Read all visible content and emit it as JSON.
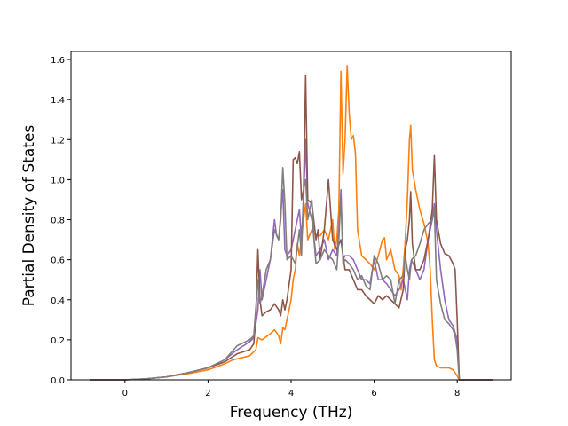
{
  "chart_data": {
    "type": "line",
    "title": "",
    "xlabel": "Frequency (THz)",
    "ylabel": "Partial Density of States",
    "xlim": [
      -1.3,
      9.3
    ],
    "ylim": [
      0.0,
      1.64
    ],
    "xticks": [
      0,
      2,
      4,
      6,
      8
    ],
    "xtick_labels": [
      "0",
      "2",
      "4",
      "6",
      "8"
    ],
    "yticks": [
      0.0,
      0.2,
      0.4,
      0.6,
      0.8,
      1.0,
      1.2,
      1.4,
      1.6
    ],
    "ytick_labels": [
      "0.0",
      "0.2",
      "0.4",
      "0.6",
      "0.8",
      "1.0",
      "1.2",
      "1.4",
      "1.6"
    ],
    "grid": false,
    "legend": "none",
    "series": [
      {
        "color": "#ff7f0e",
        "points": [
          [
            -0.85,
            0
          ],
          [
            0,
            0
          ],
          [
            0.5,
            0.005
          ],
          [
            1.0,
            0.015
          ],
          [
            1.5,
            0.03
          ],
          [
            2.0,
            0.05
          ],
          [
            2.4,
            0.08
          ],
          [
            2.6,
            0.1
          ],
          [
            2.8,
            0.11
          ],
          [
            3.0,
            0.12
          ],
          [
            3.15,
            0.15
          ],
          [
            3.2,
            0.21
          ],
          [
            3.3,
            0.2
          ],
          [
            3.5,
            0.23
          ],
          [
            3.6,
            0.25
          ],
          [
            3.7,
            0.22
          ],
          [
            3.75,
            0.18
          ],
          [
            3.8,
            0.26
          ],
          [
            3.85,
            0.25
          ],
          [
            3.9,
            0.3
          ],
          [
            4.0,
            0.4
          ],
          [
            4.05,
            0.5
          ],
          [
            4.1,
            0.55
          ],
          [
            4.15,
            0.68
          ],
          [
            4.2,
            0.62
          ],
          [
            4.3,
            0.8
          ],
          [
            4.35,
            0.88
          ],
          [
            4.4,
            0.7
          ],
          [
            4.5,
            0.75
          ],
          [
            4.6,
            0.72
          ],
          [
            4.7,
            0.72
          ],
          [
            4.8,
            0.75
          ],
          [
            4.9,
            0.7
          ],
          [
            5.0,
            0.8
          ],
          [
            5.05,
            0.65
          ],
          [
            5.1,
            0.7
          ],
          [
            5.15,
            0.85
          ],
          [
            5.2,
            1.54
          ],
          [
            5.25,
            1.03
          ],
          [
            5.3,
            1.2
          ],
          [
            5.35,
            1.57
          ],
          [
            5.4,
            1.33
          ],
          [
            5.45,
            1.2
          ],
          [
            5.5,
            1.22
          ],
          [
            5.55,
            1.13
          ],
          [
            5.6,
            0.75
          ],
          [
            5.7,
            0.62
          ],
          [
            5.8,
            0.6
          ],
          [
            5.9,
            0.58
          ],
          [
            6.0,
            0.55
          ],
          [
            6.1,
            0.62
          ],
          [
            6.2,
            0.7
          ],
          [
            6.25,
            0.71
          ],
          [
            6.3,
            0.6
          ],
          [
            6.4,
            0.65
          ],
          [
            6.5,
            0.55
          ],
          [
            6.6,
            0.52
          ],
          [
            6.65,
            0.45
          ],
          [
            6.7,
            0.55
          ],
          [
            6.75,
            0.7
          ],
          [
            6.8,
            0.9
          ],
          [
            6.85,
            1.2
          ],
          [
            6.88,
            1.27
          ],
          [
            6.92,
            1.05
          ],
          [
            7.0,
            0.95
          ],
          [
            7.1,
            0.85
          ],
          [
            7.2,
            0.78
          ],
          [
            7.3,
            0.68
          ],
          [
            7.35,
            0.55
          ],
          [
            7.4,
            0.3
          ],
          [
            7.45,
            0.1
          ],
          [
            7.5,
            0.07
          ],
          [
            7.6,
            0.06
          ],
          [
            7.7,
            0.06
          ],
          [
            7.8,
            0.06
          ],
          [
            7.9,
            0.05
          ],
          [
            8.0,
            0.02
          ],
          [
            8.05,
            0
          ],
          [
            8.85,
            0
          ]
        ]
      },
      {
        "color": "#9467bd",
        "points": [
          [
            -0.85,
            0
          ],
          [
            0,
            0
          ],
          [
            0.5,
            0.005
          ],
          [
            1.0,
            0.015
          ],
          [
            1.5,
            0.035
          ],
          [
            2.0,
            0.06
          ],
          [
            2.4,
            0.1
          ],
          [
            2.7,
            0.15
          ],
          [
            3.0,
            0.19
          ],
          [
            3.1,
            0.21
          ],
          [
            3.2,
            0.35
          ],
          [
            3.25,
            0.55
          ],
          [
            3.3,
            0.4
          ],
          [
            3.4,
            0.5
          ],
          [
            3.5,
            0.6
          ],
          [
            3.6,
            0.8
          ],
          [
            3.65,
            0.72
          ],
          [
            3.7,
            0.7
          ],
          [
            3.8,
            0.95
          ],
          [
            3.85,
            0.65
          ],
          [
            3.9,
            0.62
          ],
          [
            4.0,
            0.65
          ],
          [
            4.1,
            0.75
          ],
          [
            4.2,
            0.85
          ],
          [
            4.25,
            0.7
          ],
          [
            4.3,
            0.9
          ],
          [
            4.35,
            1.2
          ],
          [
            4.4,
            0.88
          ],
          [
            4.5,
            0.8
          ],
          [
            4.6,
            0.62
          ],
          [
            4.7,
            0.65
          ],
          [
            4.8,
            0.7
          ],
          [
            4.9,
            0.6
          ],
          [
            5.0,
            0.65
          ],
          [
            5.1,
            0.62
          ],
          [
            5.15,
            0.75
          ],
          [
            5.2,
            0.95
          ],
          [
            5.25,
            0.6
          ],
          [
            5.3,
            0.62
          ],
          [
            5.4,
            0.62
          ],
          [
            5.5,
            0.6
          ],
          [
            5.6,
            0.55
          ],
          [
            5.7,
            0.5
          ],
          [
            5.8,
            0.5
          ],
          [
            5.9,
            0.48
          ],
          [
            6.0,
            0.6
          ],
          [
            6.1,
            0.5
          ],
          [
            6.2,
            0.5
          ],
          [
            6.3,
            0.48
          ],
          [
            6.4,
            0.45
          ],
          [
            6.5,
            0.42
          ],
          [
            6.6,
            0.45
          ],
          [
            6.7,
            0.5
          ],
          [
            6.8,
            0.4
          ],
          [
            6.85,
            0.55
          ],
          [
            6.9,
            0.6
          ],
          [
            7.0,
            0.55
          ],
          [
            7.1,
            0.5
          ],
          [
            7.2,
            0.55
          ],
          [
            7.3,
            0.7
          ],
          [
            7.4,
            0.8
          ],
          [
            7.45,
            0.88
          ],
          [
            7.5,
            0.75
          ],
          [
            7.6,
            0.55
          ],
          [
            7.7,
            0.4
          ],
          [
            7.8,
            0.3
          ],
          [
            7.9,
            0.27
          ],
          [
            8.0,
            0.2
          ],
          [
            8.05,
            0
          ],
          [
            8.85,
            0
          ]
        ]
      },
      {
        "color": "#8c564b",
        "points": [
          [
            -0.85,
            0
          ],
          [
            0,
            0
          ],
          [
            0.5,
            0.005
          ],
          [
            1.0,
            0.015
          ],
          [
            1.5,
            0.035
          ],
          [
            2.0,
            0.06
          ],
          [
            2.4,
            0.09
          ],
          [
            2.7,
            0.13
          ],
          [
            3.0,
            0.15
          ],
          [
            3.1,
            0.18
          ],
          [
            3.15,
            0.3
          ],
          [
            3.2,
            0.65
          ],
          [
            3.25,
            0.4
          ],
          [
            3.3,
            0.32
          ],
          [
            3.4,
            0.34
          ],
          [
            3.5,
            0.35
          ],
          [
            3.6,
            0.38
          ],
          [
            3.7,
            0.35
          ],
          [
            3.75,
            0.32
          ],
          [
            3.8,
            0.4
          ],
          [
            3.85,
            0.35
          ],
          [
            3.9,
            0.4
          ],
          [
            4.0,
            0.55
          ],
          [
            4.05,
            1.1
          ],
          [
            4.1,
            1.11
          ],
          [
            4.15,
            1.08
          ],
          [
            4.2,
            1.14
          ],
          [
            4.25,
            0.9
          ],
          [
            4.3,
            0.95
          ],
          [
            4.35,
            1.52
          ],
          [
            4.4,
            0.9
          ],
          [
            4.5,
            0.88
          ],
          [
            4.6,
            0.7
          ],
          [
            4.65,
            0.75
          ],
          [
            4.7,
            0.6
          ],
          [
            4.8,
            0.75
          ],
          [
            4.9,
            1.0
          ],
          [
            5.0,
            0.7
          ],
          [
            5.1,
            0.65
          ],
          [
            5.2,
            0.7
          ],
          [
            5.25,
            0.62
          ],
          [
            5.3,
            0.55
          ],
          [
            5.4,
            0.55
          ],
          [
            5.5,
            0.5
          ],
          [
            5.6,
            0.45
          ],
          [
            5.7,
            0.45
          ],
          [
            5.8,
            0.42
          ],
          [
            5.9,
            0.4
          ],
          [
            6.0,
            0.38
          ],
          [
            6.1,
            0.42
          ],
          [
            6.2,
            0.4
          ],
          [
            6.3,
            0.42
          ],
          [
            6.4,
            0.4
          ],
          [
            6.5,
            0.38
          ],
          [
            6.6,
            0.36
          ],
          [
            6.7,
            0.45
          ],
          [
            6.75,
            0.65
          ],
          [
            6.8,
            0.7
          ],
          [
            6.85,
            0.8
          ],
          [
            6.88,
            0.94
          ],
          [
            6.92,
            0.68
          ],
          [
            7.0,
            0.55
          ],
          [
            7.1,
            0.55
          ],
          [
            7.2,
            0.6
          ],
          [
            7.3,
            0.7
          ],
          [
            7.4,
            0.85
          ],
          [
            7.45,
            1.12
          ],
          [
            7.5,
            0.8
          ],
          [
            7.6,
            0.68
          ],
          [
            7.7,
            0.63
          ],
          [
            7.8,
            0.62
          ],
          [
            7.9,
            0.58
          ],
          [
            7.95,
            0.55
          ],
          [
            8.0,
            0.3
          ],
          [
            8.05,
            0
          ],
          [
            8.85,
            0
          ]
        ]
      },
      {
        "color": "#7f7f7f",
        "points": [
          [
            -0.85,
            0
          ],
          [
            0,
            0
          ],
          [
            0.5,
            0.005
          ],
          [
            1.0,
            0.015
          ],
          [
            1.5,
            0.035
          ],
          [
            2.0,
            0.06
          ],
          [
            2.4,
            0.1
          ],
          [
            2.7,
            0.17
          ],
          [
            3.0,
            0.2
          ],
          [
            3.1,
            0.22
          ],
          [
            3.2,
            0.5
          ],
          [
            3.25,
            0.38
          ],
          [
            3.3,
            0.42
          ],
          [
            3.4,
            0.55
          ],
          [
            3.5,
            0.6
          ],
          [
            3.6,
            0.75
          ],
          [
            3.7,
            0.7
          ],
          [
            3.75,
            0.8
          ],
          [
            3.8,
            1.06
          ],
          [
            3.85,
            0.88
          ],
          [
            3.9,
            0.6
          ],
          [
            4.0,
            0.62
          ],
          [
            4.1,
            0.58
          ],
          [
            4.2,
            0.75
          ],
          [
            4.25,
            0.62
          ],
          [
            4.3,
            0.95
          ],
          [
            4.35,
            1.0
          ],
          [
            4.4,
            0.8
          ],
          [
            4.5,
            0.9
          ],
          [
            4.55,
            0.7
          ],
          [
            4.6,
            0.58
          ],
          [
            4.7,
            0.6
          ],
          [
            4.8,
            0.65
          ],
          [
            4.9,
            0.62
          ],
          [
            5.0,
            0.6
          ],
          [
            5.1,
            0.55
          ],
          [
            5.15,
            0.7
          ],
          [
            5.2,
            0.92
          ],
          [
            5.25,
            0.58
          ],
          [
            5.3,
            0.6
          ],
          [
            5.4,
            0.58
          ],
          [
            5.5,
            0.55
          ],
          [
            5.6,
            0.5
          ],
          [
            5.7,
            0.52
          ],
          [
            5.8,
            0.47
          ],
          [
            5.9,
            0.45
          ],
          [
            6.0,
            0.62
          ],
          [
            6.1,
            0.58
          ],
          [
            6.2,
            0.5
          ],
          [
            6.3,
            0.52
          ],
          [
            6.4,
            0.5
          ],
          [
            6.5,
            0.38
          ],
          [
            6.6,
            0.5
          ],
          [
            6.7,
            0.52
          ],
          [
            6.75,
            0.62
          ],
          [
            6.8,
            0.55
          ],
          [
            6.85,
            0.5
          ],
          [
            6.9,
            0.6
          ],
          [
            7.0,
            0.62
          ],
          [
            7.1,
            0.68
          ],
          [
            7.2,
            0.75
          ],
          [
            7.3,
            0.78
          ],
          [
            7.4,
            0.8
          ],
          [
            7.45,
            0.85
          ],
          [
            7.5,
            0.5
          ],
          [
            7.6,
            0.38
          ],
          [
            7.7,
            0.3
          ],
          [
            7.8,
            0.28
          ],
          [
            7.9,
            0.25
          ],
          [
            7.95,
            0.22
          ],
          [
            8.0,
            0.15
          ],
          [
            8.05,
            0
          ],
          [
            8.85,
            0
          ]
        ]
      }
    ]
  }
}
